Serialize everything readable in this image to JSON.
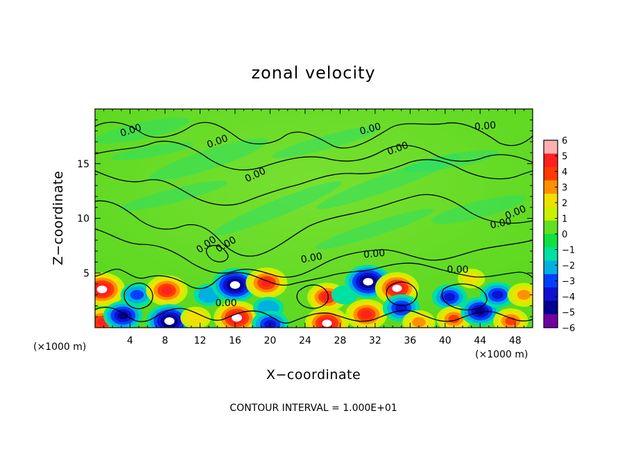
{
  "chart_data": {
    "type": "heatmap",
    "title": "zonal velocity",
    "xlabel": "X−coordinate",
    "ylabel": "Z−coordinate",
    "x_unit_label": "(×1000 m)",
    "z_unit_label": "(×1000 m)",
    "xlim": [
      0,
      50
    ],
    "ylim": [
      0,
      20
    ],
    "x_ticks": [
      4,
      8,
      12,
      16,
      20,
      24,
      28,
      32,
      36,
      40,
      44,
      48
    ],
    "x_tick_labels": [
      "4",
      "8",
      "12",
      "16",
      "20",
      "24",
      "28",
      "32",
      "36",
      "40",
      "44",
      "48"
    ],
    "y_ticks": [
      5,
      10,
      15
    ],
    "y_tick_labels": [
      "5",
      "10",
      "15"
    ],
    "colorbar": {
      "min": -6,
      "max": 6,
      "labels": [
        "6",
        "5",
        "4",
        "3",
        "2",
        "1",
        "0",
        "−1",
        "−2",
        "−3",
        "−4",
        "−5",
        "−6"
      ],
      "colors": [
        "#ffb0b0",
        "#ff2020",
        "#ff3a00",
        "#ff9000",
        "#f0e000",
        "#c8f000",
        "#60e020",
        "#10e040",
        "#00e0a0",
        "#00b0e0",
        "#0040ff",
        "#1010d0",
        "#000090",
        "#7000a0"
      ]
    },
    "contour_labels": [
      "0.00",
      "0.00",
      "0.00",
      "0.00",
      "0.00",
      "0.00",
      "0.00",
      "0.00",
      "0.00",
      "0.00",
      "0.00",
      "0.00",
      "0.00",
      "0.00"
    ],
    "blobs": [
      {
        "x": 0.8,
        "z": 3.5,
        "v": 6.0
      },
      {
        "x": 0.8,
        "z": 0.5,
        "v": 4.5
      },
      {
        "x": 3.2,
        "z": 1.1,
        "v": -4.5
      },
      {
        "x": 4.8,
        "z": 3.0,
        "v": -3.0
      },
      {
        "x": 8.2,
        "z": 3.4,
        "v": 5.0
      },
      {
        "x": 8.5,
        "z": 0.6,
        "v": -6.0
      },
      {
        "x": 11.5,
        "z": 0.9,
        "v": 2.5
      },
      {
        "x": 13.0,
        "z": 3.0,
        "v": -2.5
      },
      {
        "x": 16.0,
        "z": 3.9,
        "v": -6.0
      },
      {
        "x": 16.2,
        "z": 0.9,
        "v": 6.0
      },
      {
        "x": 19.6,
        "z": 4.1,
        "v": 5.0
      },
      {
        "x": 19.8,
        "z": 1.8,
        "v": -2.5
      },
      {
        "x": 20.0,
        "z": 0.3,
        "v": -4.0
      },
      {
        "x": 26.5,
        "z": 2.8,
        "v": 4.5
      },
      {
        "x": 26.5,
        "z": 0.4,
        "v": 5.5
      },
      {
        "x": 28.5,
        "z": 3.0,
        "v": -1.5
      },
      {
        "x": 31.2,
        "z": 4.2,
        "v": -6.0
      },
      {
        "x": 31.0,
        "z": 1.2,
        "v": 5.0
      },
      {
        "x": 34.5,
        "z": 3.6,
        "v": 5.5
      },
      {
        "x": 35.0,
        "z": 1.8,
        "v": -4.0
      },
      {
        "x": 37.0,
        "z": 0.5,
        "v": 3.0
      },
      {
        "x": 40.5,
        "z": 2.8,
        "v": -3.5
      },
      {
        "x": 41.0,
        "z": 0.8,
        "v": 3.5
      },
      {
        "x": 44.0,
        "z": 1.5,
        "v": -4.5
      },
      {
        "x": 46.0,
        "z": 3.0,
        "v": -3.5
      },
      {
        "x": 47.5,
        "z": 0.6,
        "v": 3.5
      },
      {
        "x": 49.0,
        "z": 3.0,
        "v": 3.0
      },
      {
        "x": 43.0,
        "z": 4.5,
        "v": 1.8
      }
    ]
  },
  "footer": {
    "contour_interval": "CONTOUR INTERVAL = 1.000E+01"
  }
}
